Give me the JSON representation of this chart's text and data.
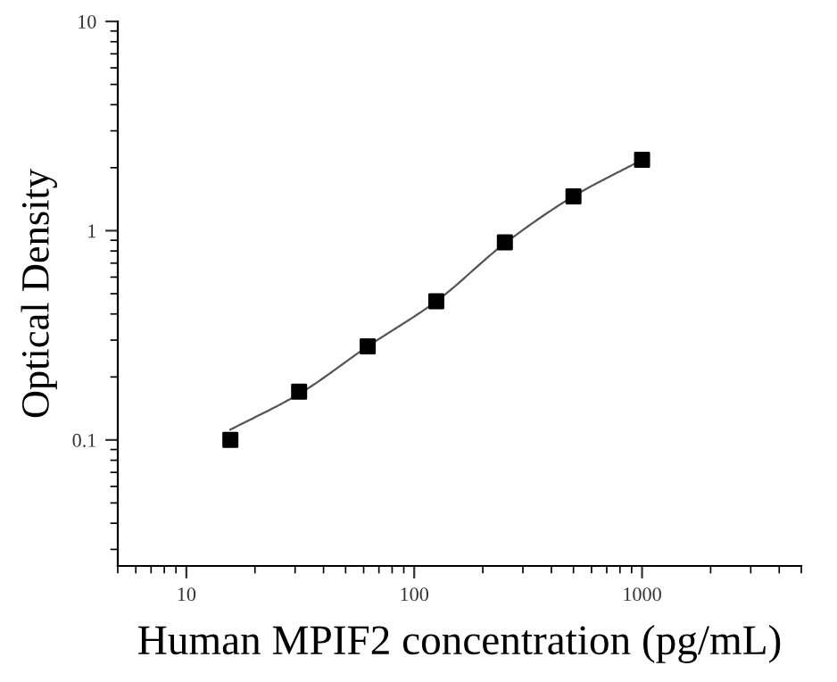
{
  "chart_data": {
    "type": "scatter",
    "xlabel": "Human MPIF2 concentration (pg/mL)",
    "ylabel": "Optical Density",
    "log": "xy",
    "grid": false,
    "marker": "square",
    "xlim": [
      5,
      5000
    ],
    "xticks": [
      10,
      100,
      1000
    ],
    "ylim": [
      0.025,
      10
    ],
    "yticks": [
      0.1,
      1,
      10
    ],
    "series": [
      {
        "color": "#000000",
        "x": [
          15.6,
          31.25,
          62.5,
          125,
          250,
          500,
          1000
        ],
        "values": [
          0.1,
          0.17,
          0.28,
          0.46,
          0.88,
          1.46,
          2.18
        ]
      },
      {
        "type": "line",
        "color": "#555555",
        "marker": "none",
        "line_style": "solid",
        "x": [
          15.6,
          31.25,
          62.5,
          125,
          250,
          500,
          1000
        ],
        "values": [
          0.112,
          0.166,
          0.28,
          0.46,
          0.87,
          1.46,
          2.18
        ]
      }
    ]
  }
}
